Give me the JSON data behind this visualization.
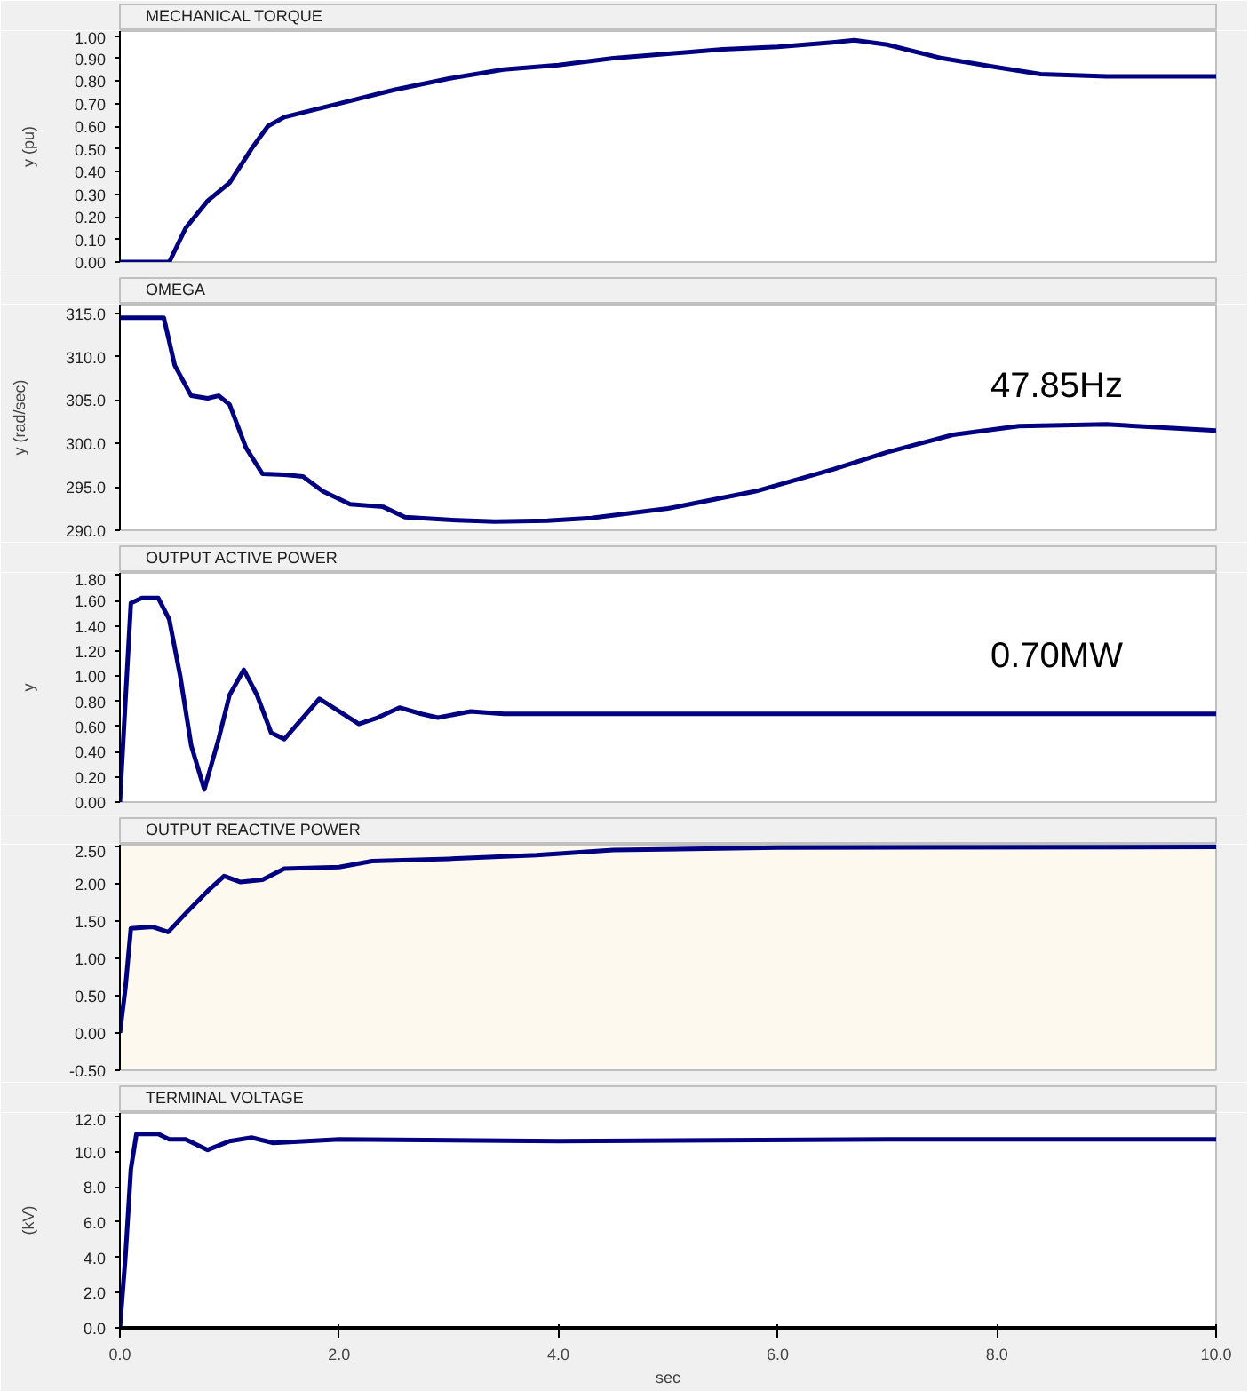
{
  "chart_data": [
    {
      "type": "line",
      "ylabel": "y (pu)",
      "xlim": [
        0,
        10
      ],
      "ylim": [
        0,
        1.02
      ],
      "tick_labels": "y",
      "legend": "top left",
      "grid": false,
      "yticks": [
        {
          "value": 0,
          "label": "0.00"
        },
        {
          "value": 0.1,
          "label": "0.10"
        },
        {
          "value": 0.2,
          "label": "0.20"
        },
        {
          "value": 0.3,
          "label": "0.30"
        },
        {
          "value": 0.4,
          "label": "0.40"
        },
        {
          "value": 0.5,
          "label": "0.50"
        },
        {
          "value": 0.6,
          "label": "0.60"
        },
        {
          "value": 0.7,
          "label": "0.70"
        },
        {
          "value": 0.8,
          "label": "0.80"
        },
        {
          "value": 0.9,
          "label": "0.90"
        },
        {
          "value": 1.0,
          "label": "1.00"
        }
      ],
      "series": [
        {
          "name": "MECHANICAL TORQUE",
          "color": "#000080",
          "x": [
            0,
            0.45,
            0.6,
            0.8,
            1.0,
            1.2,
            1.35,
            1.5,
            2.0,
            2.5,
            3.0,
            3.5,
            4.0,
            4.5,
            5.0,
            5.5,
            6.0,
            6.5,
            6.7,
            7.0,
            7.5,
            8.0,
            8.4,
            9.0,
            10.0
          ],
          "values": [
            0,
            0,
            0.15,
            0.27,
            0.35,
            0.5,
            0.6,
            0.64,
            0.7,
            0.76,
            0.81,
            0.85,
            0.87,
            0.9,
            0.92,
            0.94,
            0.95,
            0.97,
            0.98,
            0.96,
            0.9,
            0.86,
            0.83,
            0.82,
            0.82
          ]
        }
      ]
    },
    {
      "type": "line",
      "ylabel": "y (rad/sec)",
      "xlim": [
        0,
        10
      ],
      "ylim": [
        290,
        316
      ],
      "tick_labels": "y",
      "legend": "top left",
      "grid": false,
      "yticks": [
        {
          "value": 290,
          "label": "290.0"
        },
        {
          "value": 295,
          "label": "295.0"
        },
        {
          "value": 300,
          "label": "300.0"
        },
        {
          "value": 305,
          "label": "305.0"
        },
        {
          "value": 310,
          "label": "310.0"
        },
        {
          "value": 315,
          "label": "315.0"
        }
      ],
      "annotations": [
        "47.85Hz"
      ],
      "series": [
        {
          "name": "OMEGA",
          "color": "#000080",
          "x": [
            0,
            0.4,
            0.5,
            0.65,
            0.8,
            0.9,
            1.0,
            1.15,
            1.3,
            1.5,
            1.67,
            1.85,
            2.1,
            2.4,
            2.6,
            3.0,
            3.42,
            3.9,
            4.3,
            5.0,
            5.8,
            6.5,
            7.0,
            7.6,
            8.2,
            9.0,
            10.0
          ],
          "values": [
            314.5,
            314.5,
            309,
            305.5,
            305.2,
            305.5,
            304.5,
            299.5,
            296.5,
            296.4,
            296.2,
            294.5,
            293,
            292.7,
            291.5,
            291.2,
            291,
            291.1,
            291.4,
            292.5,
            294.5,
            297,
            299,
            301,
            302,
            302.2,
            301.5
          ]
        }
      ]
    },
    {
      "type": "line",
      "ylabel": "y",
      "xlim": [
        0,
        10
      ],
      "ylim": [
        0,
        1.82
      ],
      "tick_labels": "y",
      "legend": "top left",
      "grid": false,
      "yticks": [
        {
          "value": 0,
          "label": "0.00"
        },
        {
          "value": 0.2,
          "label": "0.20"
        },
        {
          "value": 0.4,
          "label": "0.40"
        },
        {
          "value": 0.6,
          "label": "0.60"
        },
        {
          "value": 0.8,
          "label": "0.80"
        },
        {
          "value": 1.0,
          "label": "1.00"
        },
        {
          "value": 1.2,
          "label": "1.20"
        },
        {
          "value": 1.4,
          "label": "1.40"
        },
        {
          "value": 1.6,
          "label": "1.60"
        },
        {
          "value": 1.8,
          "label": "1.80"
        }
      ],
      "annotations": [
        "0.70MW"
      ],
      "series": [
        {
          "name": "OUTPUT ACTIVE POWER",
          "color": "#000080",
          "x": [
            0,
            0.05,
            0.1,
            0.2,
            0.35,
            0.45,
            0.55,
            0.65,
            0.77,
            0.9,
            1.0,
            1.13,
            1.25,
            1.38,
            1.5,
            1.65,
            1.82,
            2.0,
            2.18,
            2.35,
            2.55,
            2.75,
            2.9,
            3.2,
            3.5,
            5.0,
            7.0,
            10.0
          ],
          "values": [
            0,
            0.8,
            1.58,
            1.62,
            1.62,
            1.45,
            1.0,
            0.45,
            0.1,
            0.5,
            0.85,
            1.05,
            0.85,
            0.55,
            0.5,
            0.65,
            0.82,
            0.72,
            0.62,
            0.67,
            0.75,
            0.7,
            0.67,
            0.72,
            0.7,
            0.7,
            0.7,
            0.7
          ]
        }
      ]
    },
    {
      "type": "line",
      "xlim": [
        0,
        10
      ],
      "ylim": [
        -0.5,
        2.52
      ],
      "tick_labels": "y",
      "legend": "top left",
      "grid": false,
      "yticks": [
        {
          "value": -0.5,
          "label": "-0.50"
        },
        {
          "value": 0,
          "label": "0.00"
        },
        {
          "value": 0.5,
          "label": "0.50"
        },
        {
          "value": 1.0,
          "label": "1.00"
        },
        {
          "value": 1.5,
          "label": "1.50"
        },
        {
          "value": 2.0,
          "label": "2.00"
        },
        {
          "value": 2.5,
          "label": "2.50"
        }
      ],
      "series": [
        {
          "name": "OUTPUT REACTIVE POWER",
          "color": "#000080",
          "x": [
            0,
            0.05,
            0.1,
            0.3,
            0.44,
            0.6,
            0.8,
            0.95,
            1.1,
            1.3,
            1.5,
            2.0,
            2.3,
            3.0,
            3.8,
            4.5,
            6.0,
            10.0
          ],
          "values": [
            0,
            0.6,
            1.4,
            1.42,
            1.35,
            1.6,
            1.9,
            2.1,
            2.02,
            2.05,
            2.2,
            2.22,
            2.3,
            2.33,
            2.38,
            2.45,
            2.48,
            2.49
          ]
        }
      ]
    },
    {
      "type": "line",
      "ylabel": "(kV)",
      "xlabel": "sec",
      "xlim": [
        0,
        10
      ],
      "ylim": [
        0,
        12.2
      ],
      "legend": "top left",
      "grid": false,
      "xticks": [
        {
          "value": 0,
          "label": "0.0"
        },
        {
          "value": 2,
          "label": "2.0"
        },
        {
          "value": 4,
          "label": "4.0"
        },
        {
          "value": 6,
          "label": "6.0"
        },
        {
          "value": 8,
          "label": "8.0"
        },
        {
          "value": 10,
          "label": "10.0"
        }
      ],
      "yticks": [
        {
          "value": 0,
          "label": "0.0"
        },
        {
          "value": 2,
          "label": "2.0"
        },
        {
          "value": 4,
          "label": "4.0"
        },
        {
          "value": 6,
          "label": "6.0"
        },
        {
          "value": 8,
          "label": "8.0"
        },
        {
          "value": 10,
          "label": "10.0"
        },
        {
          "value": 12,
          "label": "12.0"
        }
      ],
      "series": [
        {
          "name": "TERMINAL VOLTAGE",
          "color": "#000080",
          "x": [
            0,
            0.05,
            0.1,
            0.15,
            0.35,
            0.45,
            0.6,
            0.8,
            1.0,
            1.2,
            1.4,
            1.7,
            2.0,
            4.0,
            7.0,
            10.0
          ],
          "values": [
            0,
            4,
            9,
            11.0,
            11.0,
            10.7,
            10.7,
            10.1,
            10.6,
            10.8,
            10.5,
            10.6,
            10.7,
            10.6,
            10.7,
            10.7
          ]
        }
      ]
    }
  ]
}
